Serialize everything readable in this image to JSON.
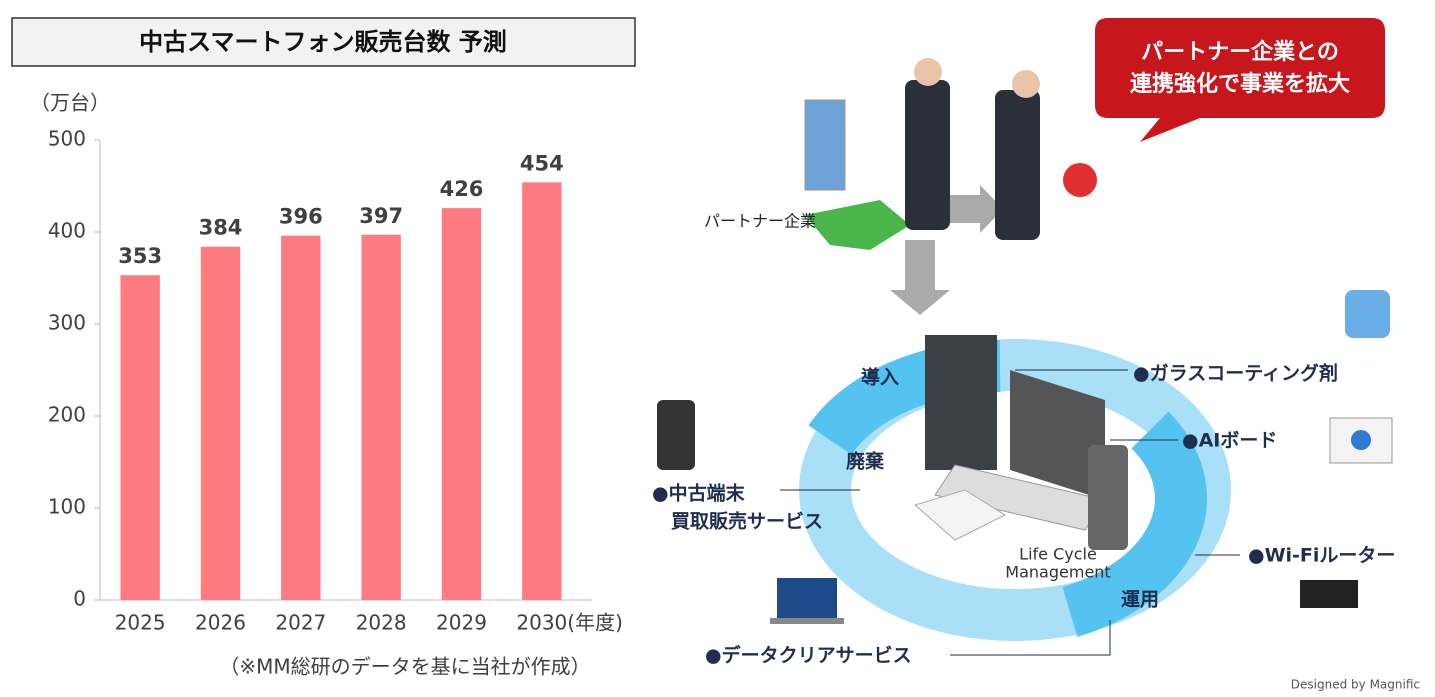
{
  "chart_data": {
    "type": "bar",
    "title": "中古スマートフォン販売台数 予測",
    "y_label": "（万台）",
    "x_label": "(年度)",
    "categories": [
      "2025",
      "2026",
      "2027",
      "2028",
      "2029",
      "2030"
    ],
    "values": [
      353,
      384,
      396,
      397,
      426,
      454
    ],
    "color": "#ff7b80",
    "ylim": [
      0,
      500
    ],
    "yticks": [
      0,
      100,
      200,
      300,
      400,
      500
    ],
    "grid": false,
    "source": "（※MM総研のデータを基に当社が作成）"
  },
  "diagram": {
    "callout": [
      "パートナー企業との",
      "連携強化で事業を拡大"
    ],
    "partner": "パートナー企業",
    "stages": [
      "導入",
      "廃棄",
      "運用"
    ],
    "center": [
      "Life Cycle",
      "Management"
    ],
    "items": {
      "glass": "●ガラスコーティング剤",
      "ai": "●AIボード",
      "wifi": "●Wi-Fiルーター",
      "used": [
        "●中古端末",
        "買取販売サービス"
      ],
      "clear": "●データクリアサービス"
    },
    "credit": "Designed by Magnific"
  }
}
